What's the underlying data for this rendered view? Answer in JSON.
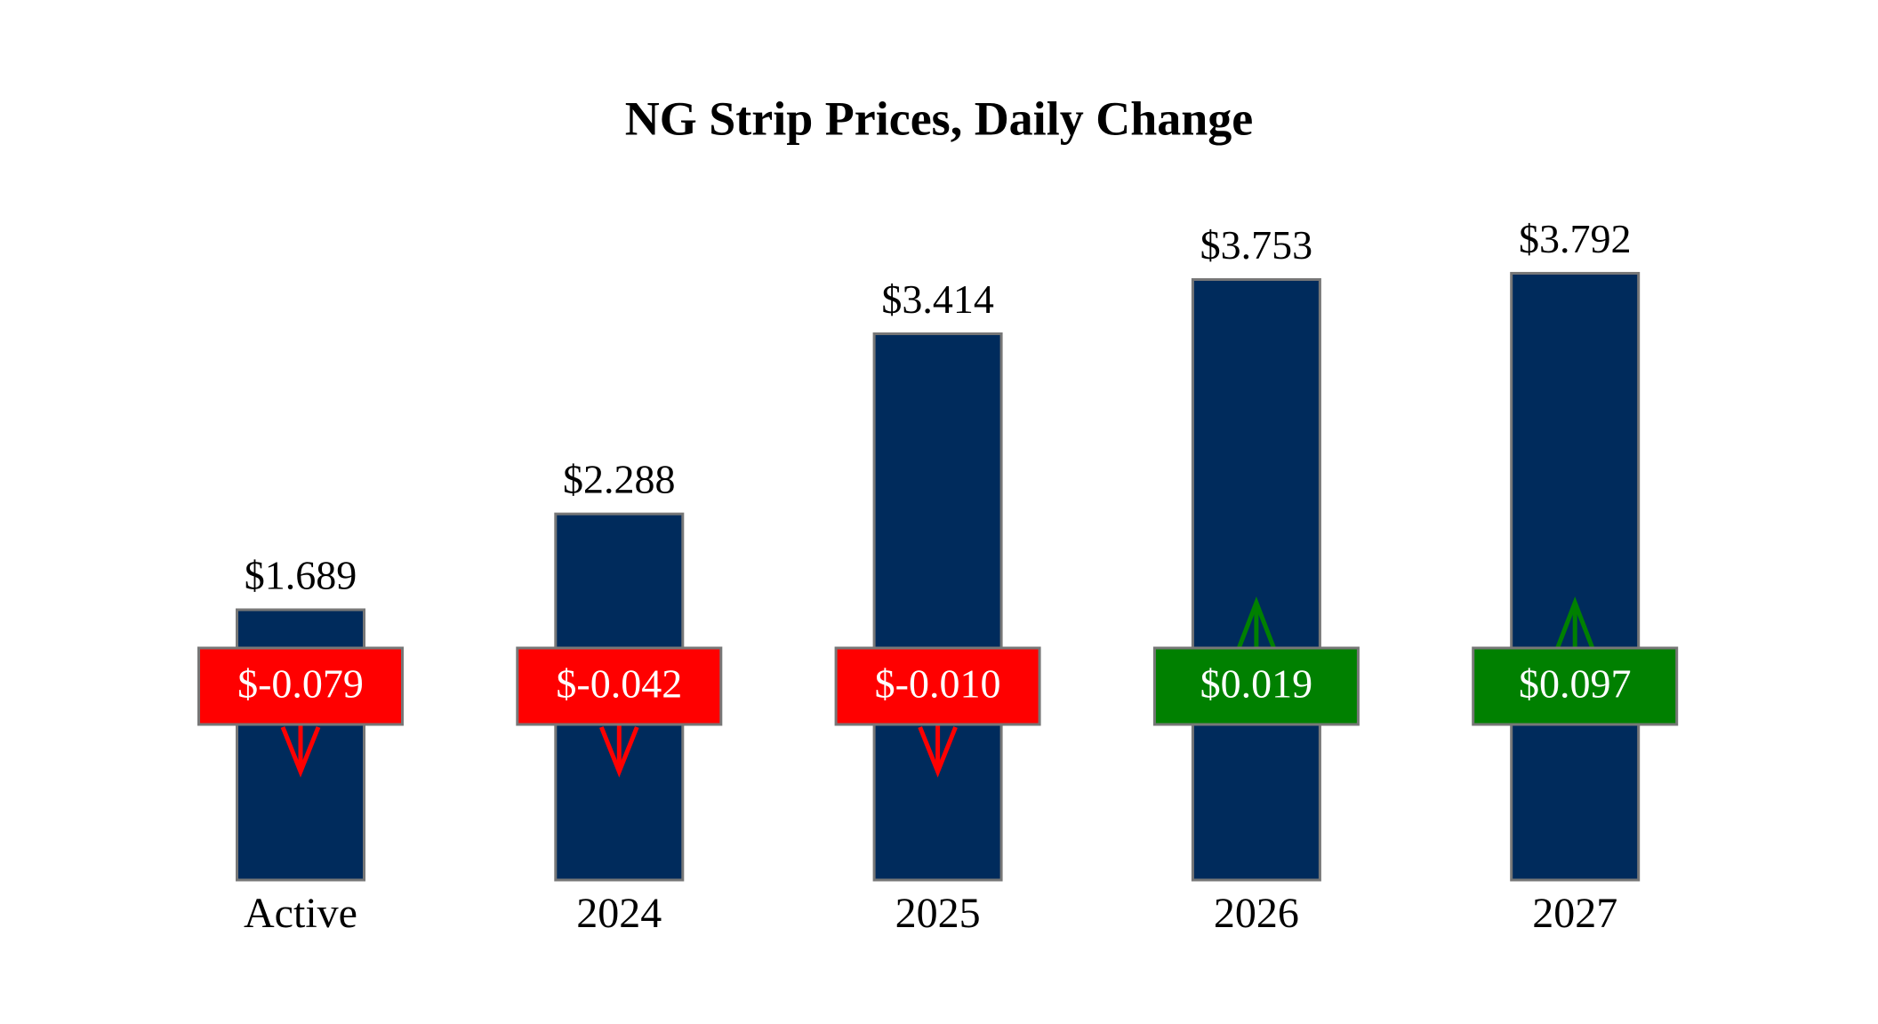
{
  "chart_data": {
    "type": "bar",
    "title": "NG Strip Prices, Daily Change",
    "categories": [
      "Active",
      "2024",
      "2025",
      "2026",
      "2027"
    ],
    "values": [
      1.689,
      2.288,
      3.414,
      3.753,
      3.792
    ],
    "value_labels": [
      "$1.689",
      "$2.288",
      "$3.414",
      "$3.753",
      "$3.792"
    ],
    "color": "#002b5c",
    "changes": [
      -0.079,
      -0.042,
      -0.01,
      0.019,
      0.097
    ],
    "change_labels": [
      "$-0.079",
      "$-0.042",
      "$-0.010",
      "$0.019",
      "$0.097"
    ],
    "change_colors": {
      "up": "#008000",
      "down": "#ff0000"
    },
    "ylim": [
      0,
      5.5
    ]
  }
}
